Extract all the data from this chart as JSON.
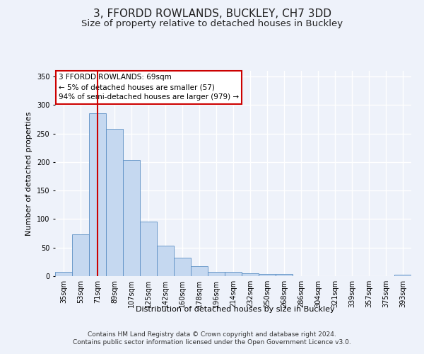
{
  "title": "3, FFORDD ROWLANDS, BUCKLEY, CH7 3DD",
  "subtitle": "Size of property relative to detached houses in Buckley",
  "xlabel": "Distribution of detached houses by size in Buckley",
  "ylabel": "Number of detached properties",
  "categories": [
    "35sqm",
    "53sqm",
    "71sqm",
    "89sqm",
    "107sqm",
    "125sqm",
    "142sqm",
    "160sqm",
    "178sqm",
    "196sqm",
    "214sqm",
    "232sqm",
    "250sqm",
    "268sqm",
    "286sqm",
    "304sqm",
    "321sqm",
    "339sqm",
    "357sqm",
    "375sqm",
    "393sqm"
  ],
  "values": [
    8,
    73,
    285,
    258,
    204,
    96,
    53,
    32,
    18,
    7,
    7,
    5,
    4,
    4,
    0,
    0,
    0,
    0,
    0,
    0,
    3
  ],
  "bar_color": "#c5d8f0",
  "bar_edge_color": "#5b8ec4",
  "highlight_index": 2,
  "highlight_line_color": "#cc0000",
  "annotation_text": "3 FFORDD ROWLANDS: 69sqm\n← 5% of detached houses are smaller (57)\n94% of semi-detached houses are larger (979) →",
  "annotation_box_color": "#ffffff",
  "annotation_box_edge_color": "#cc0000",
  "ylim": [
    0,
    360
  ],
  "yticks": [
    0,
    50,
    100,
    150,
    200,
    250,
    300,
    350
  ],
  "footer": "Contains HM Land Registry data © Crown copyright and database right 2024.\nContains public sector information licensed under the Open Government Licence v3.0.",
  "background_color": "#eef2fa",
  "grid_color": "#ffffff",
  "title_fontsize": 11,
  "subtitle_fontsize": 9.5,
  "axis_label_fontsize": 8,
  "tick_fontsize": 7,
  "footer_fontsize": 6.5,
  "annot_fontsize": 7.5
}
